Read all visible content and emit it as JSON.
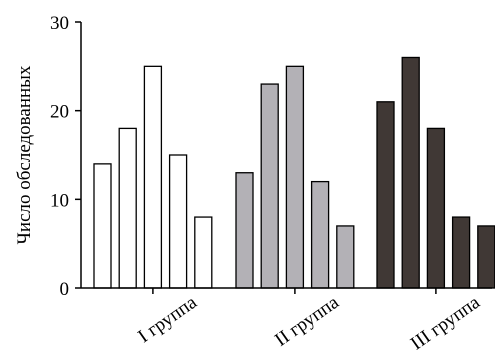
{
  "chart_data": {
    "type": "bar",
    "title": "",
    "xlabel": "",
    "ylabel": "Число обследованных",
    "ylim": [
      0,
      30
    ],
    "yticks": [
      0,
      10,
      20,
      30
    ],
    "grid": false,
    "groups": [
      {
        "label": "I группа",
        "values": [
          14,
          18,
          25,
          15,
          8
        ],
        "color": "#ffffff"
      },
      {
        "label": "II группа",
        "values": [
          13,
          23,
          25,
          12,
          7
        ],
        "color": "#b3b1b6"
      },
      {
        "label": "III группа",
        "values": [
          21,
          26,
          18,
          8,
          7
        ],
        "color": "#403835"
      }
    ]
  }
}
